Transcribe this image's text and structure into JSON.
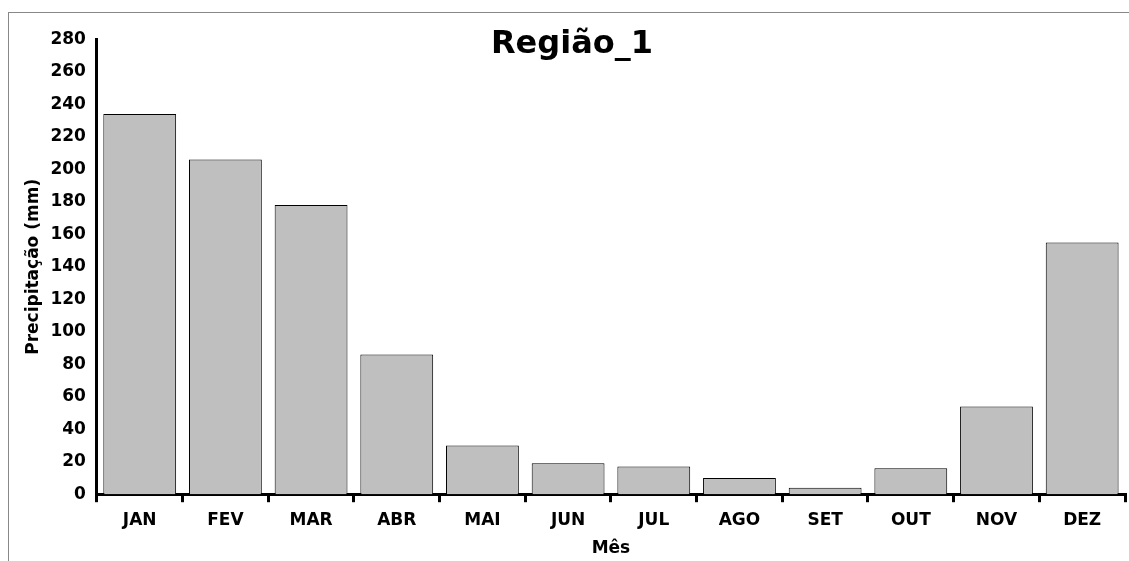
{
  "chart_data": {
    "type": "bar",
    "title": "Região_1",
    "xlabel": "Mês",
    "ylabel": "Precipitação (mm)",
    "categories": [
      "JAN",
      "FEV",
      "MAR",
      "ABR",
      "MAI",
      "JUN",
      "JUL",
      "AGO",
      "SET",
      "OUT",
      "NOV",
      "DEZ"
    ],
    "values": [
      234,
      206,
      178,
      86,
      30,
      19,
      17,
      10,
      4,
      16,
      54,
      155
    ],
    "color": "#bfbfbf",
    "ylim": [
      0,
      280
    ],
    "yticks": [
      0,
      20,
      40,
      60,
      80,
      100,
      120,
      140,
      160,
      180,
      200,
      220,
      240,
      260,
      280
    ],
    "grid": false,
    "legend": false
  }
}
